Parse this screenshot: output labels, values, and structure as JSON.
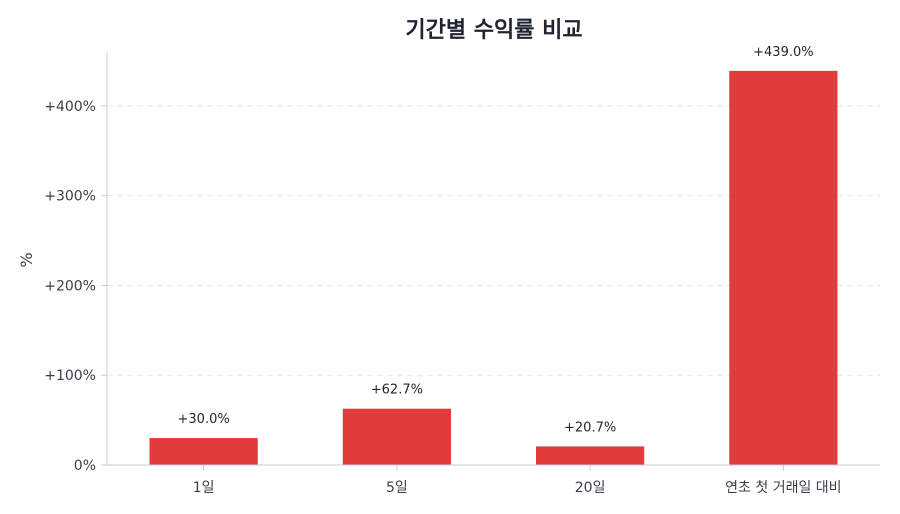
{
  "chart_data": {
    "type": "bar",
    "title": "기간별 수익률 비교",
    "xlabel": "",
    "ylabel": "%",
    "categories": [
      "1일",
      "5일",
      "20일",
      "연초 첫 거래일 대비"
    ],
    "values": [
      30.0,
      62.7,
      20.7,
      439.0
    ],
    "value_labels": [
      "+30.0%",
      "+62.7%",
      "+20.7%",
      "+439.0%"
    ],
    "ylim": [
      0,
      460
    ],
    "yticks": [
      0,
      100,
      200,
      300,
      400
    ],
    "ytick_labels": [
      "0%",
      "+100%",
      "+200%",
      "+300%",
      "+400%"
    ],
    "grid": "horizontal dashed",
    "legend": "none",
    "colors": {
      "bar": "#e03c3c",
      "grid": "#e6e8ec",
      "axis": "#c9ccd2"
    }
  }
}
